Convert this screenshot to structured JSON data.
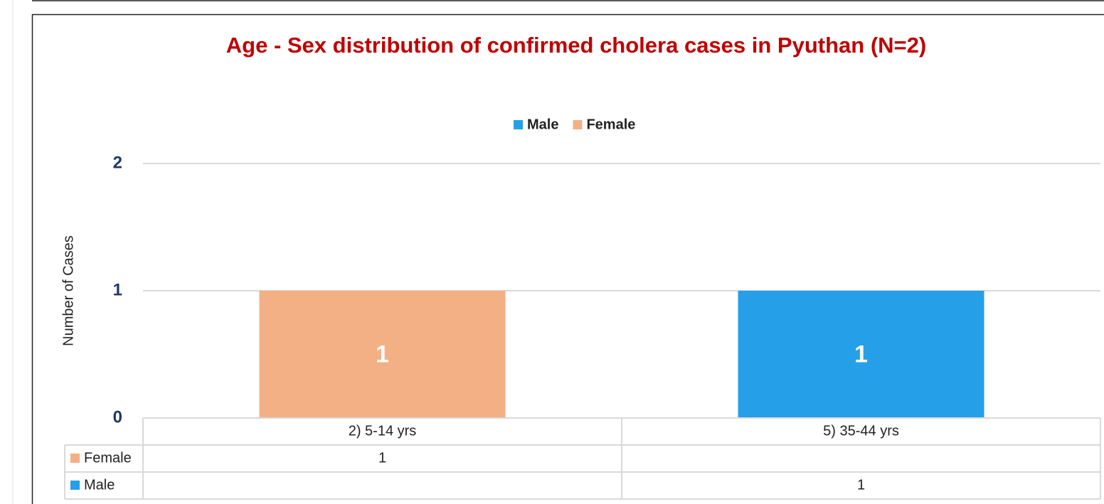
{
  "chart_data": {
    "type": "bar",
    "stacked": true,
    "title": "Age - Sex distribution of confirmed cholera cases in Pyuthan (N=2)",
    "y_label": "Number of Cases",
    "categories": [
      "2) 5-14 yrs",
      "5) 35-44 yrs"
    ],
    "series": [
      {
        "name": "Male",
        "color": "#259fe8",
        "values": [
          null,
          1
        ]
      },
      {
        "name": "Female",
        "color": "#f4b085",
        "values": [
          1,
          null
        ]
      }
    ],
    "ylim": [
      0,
      2
    ],
    "yticks": [
      0,
      1,
      2
    ],
    "grid": true,
    "legend": "top",
    "data_table": true
  }
}
